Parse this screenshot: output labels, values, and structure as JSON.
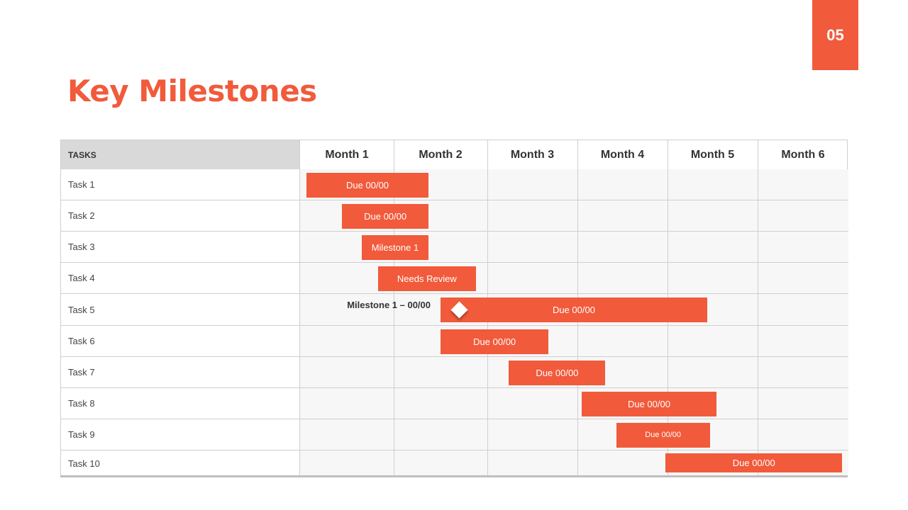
{
  "page_number": "05",
  "title": "Key Milestones",
  "header": {
    "tasks_label": "TASKS",
    "months": [
      "Month 1",
      "Month 2",
      "Month 3",
      "Month 4",
      "Month 5",
      "Month 6"
    ]
  },
  "tasks": [
    "Task 1",
    "Task 2",
    "Task 3",
    "Task 4",
    "Task 5",
    "Task 6",
    "Task 7",
    "Task 8",
    "Task 9",
    "Task 10"
  ],
  "bars": [
    {
      "task": "Task 1",
      "label": "Due 00/00",
      "start_month": 0.07,
      "end_month": 1.37
    },
    {
      "task": "Task 2",
      "label": "Due 00/00",
      "start_month": 0.45,
      "end_month": 1.37
    },
    {
      "task": "Task 3",
      "label": "Milestone 1",
      "start_month": 0.66,
      "end_month": 1.37
    },
    {
      "task": "Task 4",
      "label": "Needs Review",
      "start_month": 0.83,
      "end_month": 1.88
    },
    {
      "task": "Task 5",
      "label": "Due 00/00",
      "start_month": 1.5,
      "end_month": 4.44
    },
    {
      "task": "Task 6",
      "label": "Due 00/00",
      "start_month": 1.5,
      "end_month": 2.68
    },
    {
      "task": "Task 7",
      "label": "Due 00/00",
      "start_month": 2.24,
      "end_month": 3.31
    },
    {
      "task": "Task 8",
      "label": "Due 00/00",
      "start_month": 3.05,
      "end_month": 4.54
    },
    {
      "task": "Task 9",
      "label": "Due 00/00",
      "start_month": 3.43,
      "end_month": 4.47,
      "small": true
    },
    {
      "task": "Task 10",
      "label": "Due 00/00",
      "start_month": 3.98,
      "end_month": 5.93
    }
  ],
  "milestone": {
    "task": "Task 5",
    "label": "Milestone 1 – 00/00",
    "month": 1.7
  },
  "colors": {
    "accent": "#f15a3b"
  }
}
